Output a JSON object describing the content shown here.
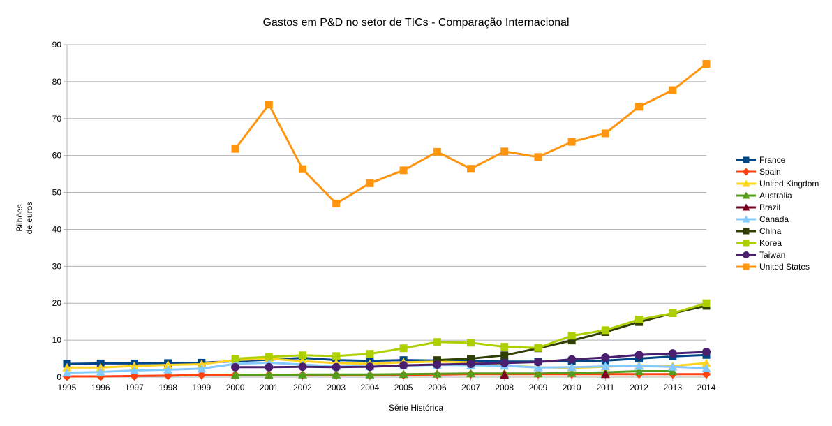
{
  "chart_data": {
    "type": "line",
    "title": "Gastos em P&D no setor de TICs - Comparação Internacional",
    "xlabel": "Série Histórica",
    "ylabel_lines": [
      "Bilhões",
      "de euros"
    ],
    "ylim": [
      0,
      90
    ],
    "yticks": [
      0,
      10,
      20,
      30,
      40,
      50,
      60,
      70,
      80,
      90
    ],
    "grid": "horizontal",
    "legend_position": "right",
    "categories": [
      "1995",
      "1996",
      "1997",
      "1998",
      "1999",
      "2000",
      "2001",
      "2002",
      "2003",
      "2004",
      "2005",
      "2006",
      "2007",
      "2008",
      "2009",
      "2010",
      "2011",
      "2012",
      "2013",
      "2014"
    ],
    "series": [
      {
        "name": "France",
        "color": "#004586",
        "marker": "square",
        "values": [
          3.6,
          3.7,
          3.7,
          3.8,
          3.9,
          4.3,
          4.7,
          5.2,
          4.6,
          4.4,
          4.6,
          4.5,
          4.4,
          4.2,
          4.2,
          4.3,
          4.5,
          5.0,
          5.6,
          6.0
        ]
      },
      {
        "name": "Spain",
        "color": "#ff420e",
        "marker": "diamond",
        "values": [
          0.2,
          0.2,
          0.3,
          0.4,
          0.6,
          0.6,
          0.6,
          0.6,
          0.5,
          0.5,
          0.6,
          0.7,
          0.8,
          0.8,
          0.8,
          0.8,
          0.8,
          0.8,
          0.8,
          0.8
        ]
      },
      {
        "name": "United Kingdom",
        "color": "#ffd320",
        "marker": "triangle",
        "values": [
          2.6,
          2.6,
          3.0,
          3.3,
          3.5,
          4.6,
          5.0,
          4.3,
          3.8,
          3.6,
          4.0,
          4.2,
          4.0,
          3.1,
          2.7,
          2.5,
          2.8,
          3.2,
          3.0,
          3.8
        ]
      },
      {
        "name": "Australia",
        "color": "#579d1c",
        "marker": "triangle",
        "values": [
          null,
          null,
          null,
          null,
          null,
          0.6,
          0.6,
          0.7,
          0.7,
          0.7,
          0.8,
          0.9,
          1.0,
          1.0,
          1.0,
          1.1,
          1.3,
          1.6,
          1.6,
          null
        ]
      },
      {
        "name": "Brazil",
        "color": "#7e0021",
        "marker": "triangle",
        "values": [
          null,
          null,
          null,
          null,
          null,
          null,
          null,
          null,
          null,
          null,
          null,
          null,
          null,
          0.6,
          null,
          null,
          0.8,
          null,
          null,
          null
        ]
      },
      {
        "name": "Canada",
        "color": "#83caff",
        "marker": "triangle",
        "values": [
          1.2,
          1.4,
          1.8,
          2.0,
          2.3,
          3.6,
          3.9,
          3.4,
          2.9,
          2.9,
          3.1,
          3.3,
          3.2,
          3.1,
          2.6,
          2.7,
          2.9,
          3.0,
          2.8,
          2.4
        ]
      },
      {
        "name": "China",
        "color": "#314004",
        "marker": "square",
        "values": [
          null,
          null,
          null,
          null,
          null,
          null,
          null,
          null,
          null,
          null,
          null,
          4.6,
          5.0,
          5.9,
          7.8,
          9.9,
          12.2,
          14.9,
          17.3,
          19.3
        ]
      },
      {
        "name": "Korea",
        "color": "#aecf00",
        "marker": "square",
        "values": [
          null,
          null,
          null,
          null,
          null,
          5.0,
          5.5,
          5.9,
          5.7,
          6.3,
          7.8,
          9.5,
          9.3,
          8.2,
          7.9,
          11.2,
          12.7,
          15.6,
          17.3,
          20.0
        ]
      },
      {
        "name": "Taiwan",
        "color": "#4b1f6f",
        "marker": "circle",
        "values": [
          null,
          null,
          null,
          null,
          null,
          2.7,
          2.7,
          2.8,
          2.7,
          2.8,
          3.2,
          3.4,
          3.6,
          3.8,
          4.1,
          4.8,
          5.3,
          6.0,
          6.4,
          6.8
        ]
      },
      {
        "name": "United States",
        "color": "#ff950e",
        "marker": "square",
        "values": [
          null,
          null,
          null,
          null,
          null,
          61.8,
          73.8,
          56.3,
          47.0,
          52.5,
          56.0,
          61.0,
          56.4,
          61.1,
          59.6,
          63.7,
          66.0,
          73.2,
          77.7,
          84.8
        ]
      }
    ]
  }
}
